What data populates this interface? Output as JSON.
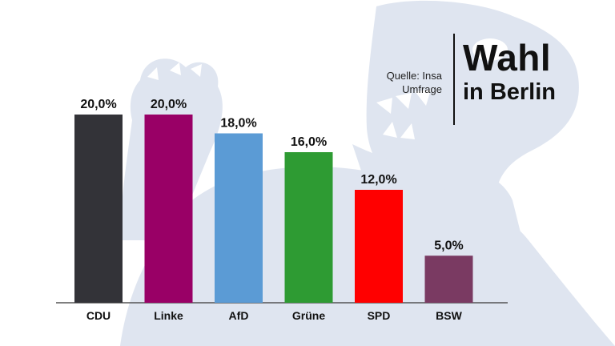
{
  "header": {
    "title": "Wahl",
    "subtitle": "in Berlin",
    "source_line1": "Quelle: Insa",
    "source_line2": "Umfrage"
  },
  "colors": {
    "background": "#ffffff",
    "bear_watermark": "#dfe5f0",
    "bear_detail": "#ffffff",
    "axis": "#555555",
    "text": "#111111"
  },
  "background_icon": "berlin-bear-watermark",
  "chart_data": {
    "type": "bar",
    "categories": [
      "CDU",
      "Linke",
      "AfD",
      "Grüne",
      "SPD",
      "BSW"
    ],
    "values": [
      20.0,
      20.0,
      18.0,
      16.0,
      12.0,
      5.0
    ],
    "value_labels": [
      "20,0%",
      "20,0%",
      "18,0%",
      "16,0%",
      "12,0%",
      "5,0%"
    ],
    "colors": [
      "#333338",
      "#990066",
      "#5b9bd5",
      "#2e9b33",
      "#ff0000",
      "#7a3a62"
    ],
    "ylim": [
      0,
      20
    ],
    "grid": false,
    "legend": "none",
    "title": "",
    "xlabel": "",
    "ylabel": ""
  }
}
